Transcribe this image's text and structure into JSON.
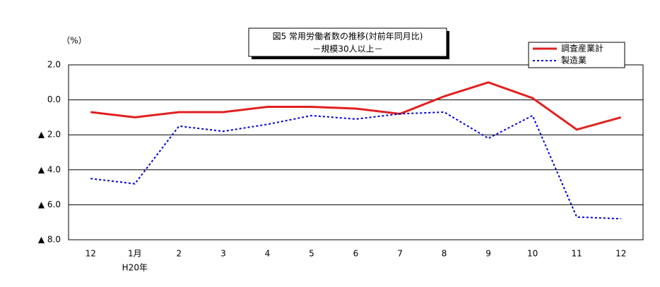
{
  "chart_data": {
    "type": "line",
    "title": "図5  常用労働者数の推移(対前年同月比)",
    "subtitle": "－規模30人以上－",
    "y_unit": "（%）",
    "categories": [
      "12",
      "1月",
      "2",
      "3",
      "4",
      "5",
      "6",
      "7",
      "8",
      "9",
      "10",
      "11",
      "12"
    ],
    "x_annotation": "H20年",
    "series": [
      {
        "name": "調査産業計",
        "color": "#e02020",
        "style": "solid",
        "values": [
          -0.7,
          -1.0,
          -0.7,
          -0.7,
          -0.4,
          -0.4,
          -0.5,
          -0.8,
          0.2,
          1.0,
          0.1,
          -1.7,
          -1.0
        ]
      },
      {
        "name": "製造業",
        "color": "#0000cc",
        "style": "dotted",
        "values": [
          -4.5,
          -4.8,
          -1.5,
          -1.8,
          -1.4,
          -0.9,
          -1.1,
          -0.8,
          -0.7,
          -2.2,
          -0.9,
          -6.7,
          -6.8
        ]
      }
    ],
    "ylim": [
      -8,
      2
    ],
    "yticks": [
      {
        "value": 2,
        "label": "2.0"
      },
      {
        "value": 0,
        "label": "0.0"
      },
      {
        "value": -2,
        "label": "▲ 2.0"
      },
      {
        "value": -4,
        "label": "▲ 4.0"
      },
      {
        "value": -6,
        "label": "▲ 6.0"
      },
      {
        "value": -8,
        "label": "▲ 8.0"
      }
    ],
    "grid": true,
    "legend": "top-right"
  }
}
